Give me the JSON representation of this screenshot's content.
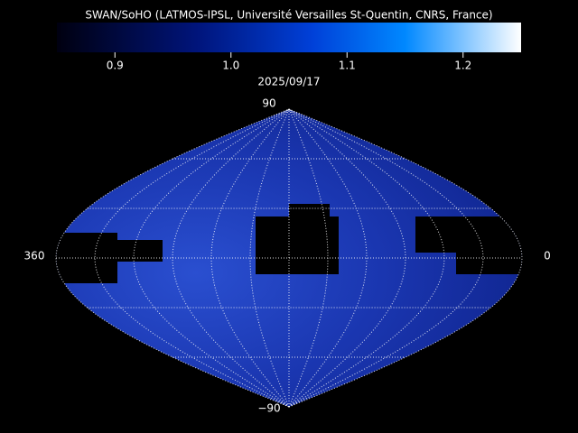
{
  "header": {
    "title": "SWAN/SoHO (LATMOS-IPSL, Université Versailles St-Quentin, CNRS, France)"
  },
  "colorbar": {
    "lim": [
      0.85,
      1.25
    ],
    "ticks": [
      0.9,
      {
        "value": 1.0,
        "label": "1.0"
      },
      1.1,
      1.2
    ]
  },
  "date": "2025/09/17",
  "map": {
    "top_label": "90",
    "bottom_label": "−90",
    "left_label": "360",
    "right_label": "0"
  }
}
